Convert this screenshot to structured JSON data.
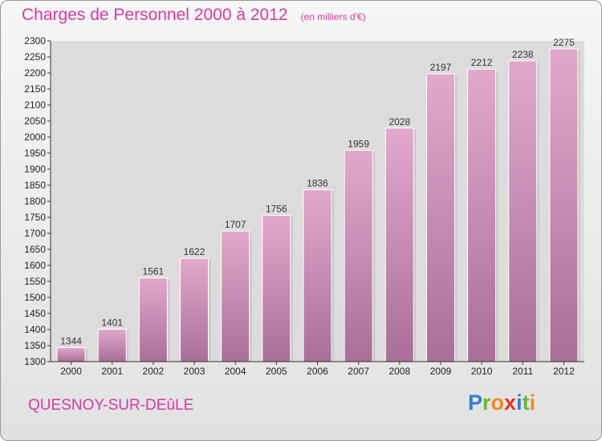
{
  "title": "Charges de Personnel 2000 à 2012",
  "unit": "(en milliers d'€)",
  "commune": "QUESNOY-SUR-DEûLE",
  "logo": {
    "letters": [
      "P",
      "r",
      "o",
      "x",
      "i",
      "t",
      "i"
    ],
    "colors": [
      "#2f7fd4",
      "#6bb634",
      "#f28c1e",
      "#e5332a",
      "#2f7fd4",
      "#6bb634",
      "#f28c1e"
    ]
  },
  "colors": {
    "bar_top": "#e3a8cd",
    "bar_bottom": "#a96f98",
    "title": "#d23ba6"
  },
  "chart_data": {
    "type": "bar",
    "categories": [
      "2000",
      "2001",
      "2002",
      "2003",
      "2004",
      "2005",
      "2006",
      "2007",
      "2008",
      "2009",
      "2010",
      "2011",
      "2012"
    ],
    "values": [
      1344,
      1401,
      1561,
      1622,
      1707,
      1756,
      1836,
      1959,
      2028,
      2197,
      2212,
      2238,
      2275
    ],
    "ylim": [
      1300,
      2300
    ],
    "yticks": [
      1300,
      1350,
      1400,
      1450,
      1500,
      1550,
      1600,
      1650,
      1700,
      1750,
      1800,
      1850,
      1900,
      1950,
      2000,
      2050,
      2100,
      2150,
      2200,
      2250,
      2300
    ],
    "grid": false,
    "data_labels": true
  }
}
